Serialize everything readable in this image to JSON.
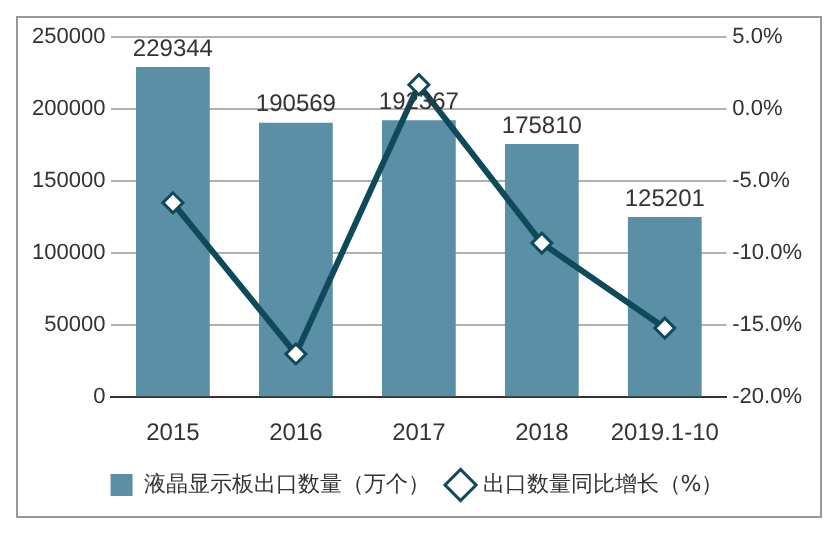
{
  "chart_data": {
    "type": "bar",
    "categories": [
      "2015",
      "2016",
      "2017",
      "2018",
      "2019.1-10"
    ],
    "series": [
      {
        "name": "液晶显示板出口数量（万个）",
        "color": "#5b8fa6",
        "values": [
          229344,
          190569,
          192367,
          175810,
          125201
        ],
        "value_labels": [
          "229344",
          "190569",
          "192367",
          "175810",
          "125201"
        ]
      },
      {
        "name": "出口数量同比增长（%）",
        "type": "line",
        "axis": "y2",
        "color": "#0e4a5a",
        "marker": "diamond",
        "values": [
          -6.5,
          -17.0,
          1.7,
          -9.3,
          -15.2
        ]
      }
    ],
    "ylim": [
      0,
      250000
    ],
    "yticks": [
      0,
      50000,
      100000,
      150000,
      200000,
      250000
    ],
    "y2lim": [
      -20,
      5
    ],
    "y2ticks": [
      {
        "value": -20,
        "label": "-20.0%"
      },
      {
        "value": -15,
        "label": "-15.0%"
      },
      {
        "value": -10,
        "label": "-10.0%"
      },
      {
        "value": -5,
        "label": "-5.0%"
      },
      {
        "value": 0,
        "label": "0.0%"
      },
      {
        "value": 5,
        "label": "5.0%"
      }
    ],
    "grid": "y",
    "legend": "bottom"
  }
}
